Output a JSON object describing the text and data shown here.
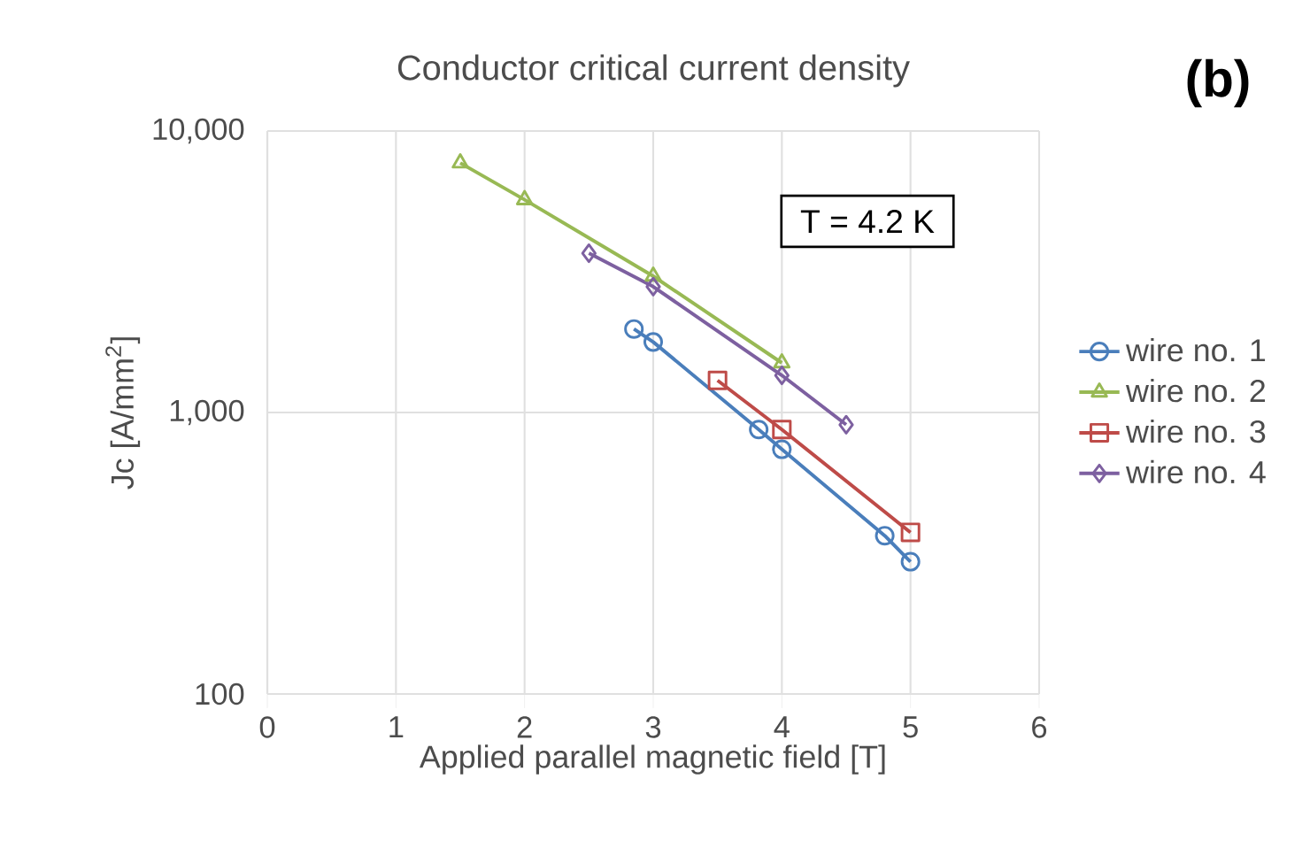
{
  "chart_data": {
    "type": "line",
    "title": "Conductor critical current density",
    "xlabel": "Applied parallel magnetic field [T]",
    "ylabel": "Jc [A/mm$^{2}$]",
    "annotations": [
      "T = 4.2 K",
      "(b)"
    ],
    "log": "y",
    "grid": true,
    "legend": "right",
    "line_style": "solid",
    "xlim": [
      0,
      6
    ],
    "xticks": [
      0,
      1,
      2,
      3,
      4,
      5,
      6
    ],
    "ylim": [
      100,
      10000
    ],
    "yticks": [
      {
        "value": 100,
        "label": "100"
      },
      {
        "value": 1000,
        "label": "1,000"
      },
      {
        "value": 10000,
        "label": "10,000"
      }
    ],
    "series": [
      {
        "name": "wire no. 1",
        "color": "#4a7ebb",
        "marker": "circle",
        "x": [
          2.85,
          3.0,
          3.82,
          4.0,
          4.8,
          5.0
        ],
        "values": [
          1980,
          1780,
          870,
          740,
          365,
          295
        ]
      },
      {
        "name": "wire no. 2",
        "color": "#98b954",
        "marker": "triangle",
        "x": [
          1.5,
          2.0,
          3.0,
          4.0
        ],
        "values": [
          7700,
          5700,
          3050,
          1500
        ]
      },
      {
        "name": "wire no. 3",
        "color": "#be4b48",
        "marker": "square",
        "x": [
          3.5,
          4.0,
          5.0
        ],
        "values": [
          1300,
          870,
          375
        ]
      },
      {
        "name": "wire no. 4",
        "color": "#7d60a0",
        "marker": "diamond",
        "x": [
          2.5,
          3.0,
          4.0,
          4.5
        ],
        "values": [
          3680,
          2800,
          1355,
          905
        ]
      }
    ]
  }
}
